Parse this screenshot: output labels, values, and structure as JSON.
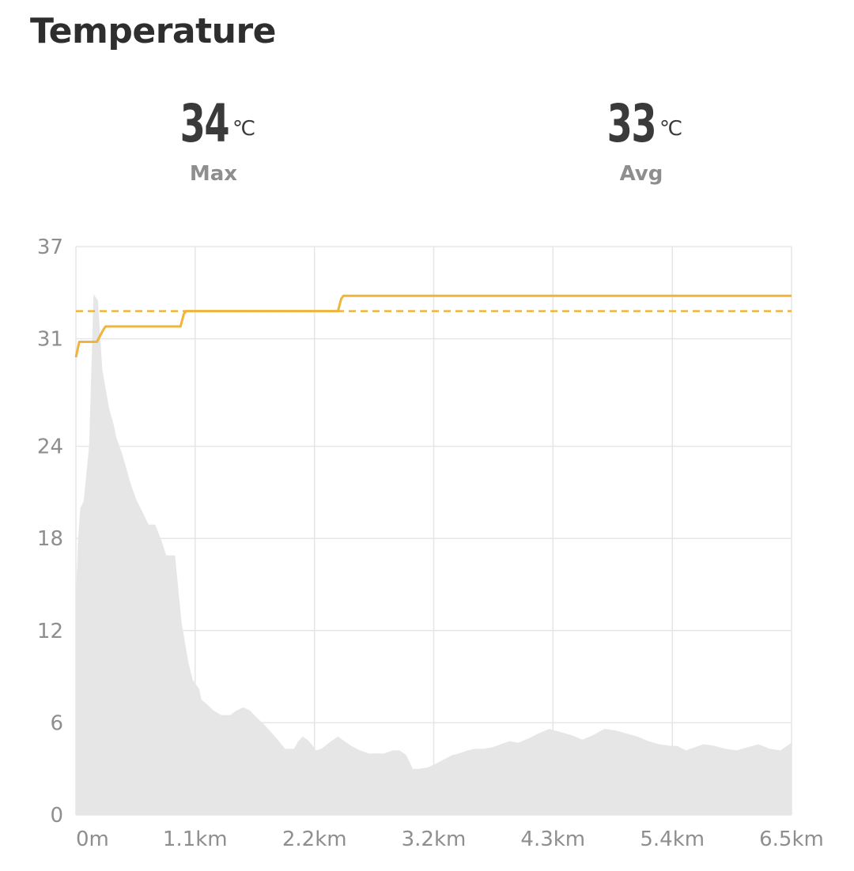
{
  "header": {
    "title": "Temperature"
  },
  "stats": {
    "max": {
      "value": "34",
      "unit": "℃",
      "label": "Max"
    },
    "avg": {
      "value": "33",
      "unit": "℃",
      "label": "Avg"
    }
  },
  "colors": {
    "line": "#f0b43c",
    "avg_line": "#f0b43c",
    "area": "#e6e6e6",
    "grid": "#e6e6e6"
  },
  "chart_data": {
    "type": "line",
    "title": "Temperature",
    "ylim": [
      0,
      37
    ],
    "y_ticks": [
      "0",
      "6",
      "12",
      "18",
      "24",
      "31",
      "37"
    ],
    "y_tick_values": [
      0,
      6,
      12,
      18,
      24,
      31,
      37
    ],
    "xlim": [
      0,
      6.5
    ],
    "x_ticks": [
      "0m",
      "1.1km",
      "2.2km",
      "3.2km",
      "4.3km",
      "5.4km",
      "6.5km"
    ],
    "x_tick_values": [
      0,
      1.083,
      2.167,
      3.25,
      4.333,
      5.417,
      6.5
    ],
    "grid": true,
    "series": [
      {
        "type": "line",
        "values_x": [
          0,
          0.03,
          0.04,
          0.19,
          0.25,
          0.27,
          0.95,
          0.98,
          1.0,
          2.38,
          2.41,
          2.43,
          6.5
        ],
        "values_y": [
          29.8,
          30.8,
          30.8,
          30.8,
          31.6,
          31.8,
          31.8,
          32.6,
          32.8,
          32.8,
          33.6,
          33.8,
          33.8
        ]
      },
      {
        "type": "line-dashed",
        "values_x": [
          0,
          6.5
        ],
        "values_y": [
          32.8,
          32.8
        ]
      },
      {
        "type": "area",
        "values_x": [
          0,
          0.02,
          0.04,
          0.07,
          0.12,
          0.16,
          0.2,
          0.24,
          0.3,
          0.34,
          0.37,
          0.42,
          0.5,
          0.55,
          0.6,
          0.66,
          0.72,
          0.78,
          0.82,
          0.9,
          0.96,
          1.02,
          1.06,
          1.12,
          1.14,
          1.19,
          1.25,
          1.32,
          1.4,
          1.46,
          1.52,
          1.58,
          1.62,
          1.72,
          1.82,
          1.9,
          1.98,
          2.02,
          2.06,
          2.1,
          2.14,
          2.18,
          2.23,
          2.3,
          2.38,
          2.44,
          2.5,
          2.58,
          2.66,
          2.72,
          2.8,
          2.88,
          2.94,
          3.0,
          3.06,
          3.12,
          3.2,
          3.26,
          3.34,
          3.42,
          3.48,
          3.56,
          3.62,
          3.7,
          3.78,
          3.86,
          3.94,
          4.02,
          4.12,
          4.2,
          4.3,
          4.4,
          4.5,
          4.6,
          4.7,
          4.8,
          4.9,
          5.0,
          5.1,
          5.2,
          5.3,
          5.4,
          5.46,
          5.54,
          5.62,
          5.7,
          5.8,
          5.9,
          6.0,
          6.1,
          6.2,
          6.3,
          6.4,
          6.5
        ],
        "values_y": [
          14.0,
          18.0,
          20.0,
          20.4,
          24.0,
          33.9,
          33.5,
          29.0,
          26.5,
          25.5,
          24.5,
          23.5,
          21.5,
          20.5,
          19.8,
          18.9,
          18.9,
          17.8,
          16.9,
          16.9,
          12.5,
          10.0,
          8.8,
          8.2,
          7.5,
          7.2,
          6.8,
          6.5,
          6.5,
          6.8,
          7.0,
          6.8,
          6.5,
          5.8,
          5.0,
          4.3,
          4.3,
          4.8,
          5.1,
          4.9,
          4.6,
          4.2,
          4.3,
          4.7,
          5.1,
          4.8,
          4.5,
          4.2,
          4.0,
          4.0,
          4.0,
          4.2,
          4.2,
          3.9,
          3.0,
          3.0,
          3.1,
          3.3,
          3.6,
          3.9,
          4.0,
          4.2,
          4.3,
          4.3,
          4.4,
          4.6,
          4.8,
          4.7,
          5.0,
          5.3,
          5.6,
          5.4,
          5.2,
          4.9,
          5.2,
          5.6,
          5.5,
          5.3,
          5.1,
          4.8,
          4.6,
          4.5,
          4.5,
          4.2,
          4.4,
          4.6,
          4.5,
          4.3,
          4.2,
          4.4,
          4.6,
          4.3,
          4.2,
          4.7
        ]
      }
    ]
  }
}
